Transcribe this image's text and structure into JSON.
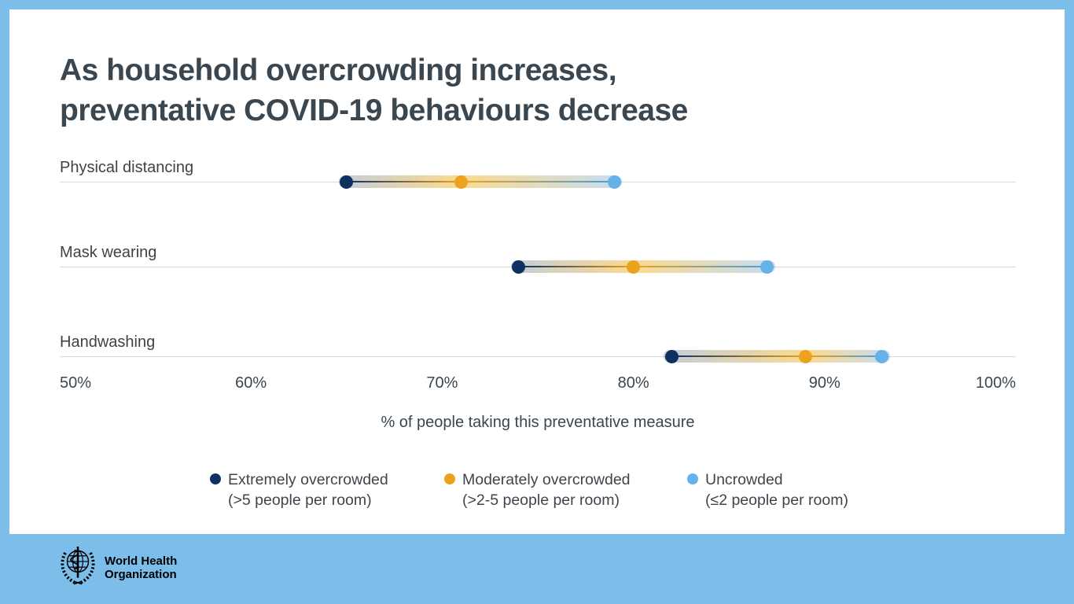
{
  "frame": {
    "background_color": "#7cbde9",
    "card_color": "#ffffff"
  },
  "title": {
    "line1": "As household overcrowding increases,",
    "line2": "preventative COVID-19 behaviours decrease"
  },
  "chart_data": {
    "type": "dot-range",
    "title": "As household overcrowding increases, preventative COVID-19 behaviours decrease",
    "categories": [
      "Physical distancing",
      "Mask wearing",
      "Handwashing"
    ],
    "series": [
      {
        "key": "extremely-overcrowded",
        "name": "Extremely overcrowded",
        "detail": "(>5 people per room)",
        "color": "#0e3161",
        "values": [
          65,
          74,
          82
        ]
      },
      {
        "key": "moderately-overcrowded",
        "name": "Moderately overcrowded",
        "detail": "(>2-5 people per room)",
        "color": "#eba31e",
        "values": [
          71,
          80,
          89
        ]
      },
      {
        "key": "uncrowded",
        "name": "Uncrowded",
        "detail": "(≤2 people per room)",
        "color": "#64b2e8",
        "values": [
          79,
          87,
          93
        ]
      }
    ],
    "xlabel": "% of people taking this preventative measure",
    "xlim": [
      50,
      100
    ],
    "xticks": [
      "50%",
      "60%",
      "70%",
      "80%",
      "90%",
      "100%"
    ],
    "grid": "horizontal-category-lines-only",
    "legend_position": "bottom"
  },
  "legend": {
    "items": [
      {
        "key": "extremely-overcrowded",
        "label": "Extremely overcrowded",
        "sublabel": "(>5 people per room)",
        "color": "#0e3161"
      },
      {
        "key": "moderately-overcrowded",
        "label": "Moderately overcrowded",
        "sublabel": "(>2-5 people per room)",
        "color": "#eba31e"
      },
      {
        "key": "uncrowded",
        "label": "Uncrowded",
        "sublabel": "(≤2 people per room)",
        "color": "#64b2e8"
      }
    ]
  },
  "footer": {
    "org_line1": "World Health",
    "org_line2": "Organization"
  }
}
